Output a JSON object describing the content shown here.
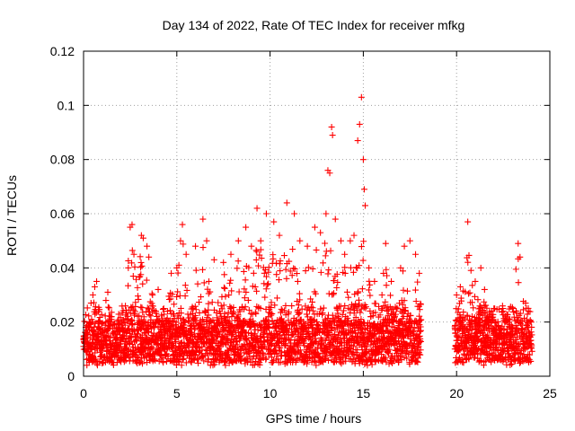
{
  "chart_data": {
    "type": "scatter",
    "title": "Day 134 of 2022, Rate Of TEC Index for receiver mfkg",
    "xlabel": "GPS time / hours",
    "ylabel": "ROTI / TECUs",
    "xlim": [
      0,
      25
    ],
    "ylim": [
      0,
      0.12
    ],
    "xticks": [
      0,
      5,
      10,
      15,
      20,
      25
    ],
    "xtick_labels": [
      "0",
      "5",
      "10",
      "15",
      "20",
      "25"
    ],
    "yticks": [
      0,
      0.02,
      0.04,
      0.06,
      0.08,
      0.1,
      0.12
    ],
    "ytick_labels": [
      "0",
      "0.02",
      "0.04",
      "0.06",
      "0.08",
      "0.1",
      "0.12"
    ],
    "grid": true,
    "marker": "+",
    "color": "#ff0000",
    "data_gap": [
      18.1,
      19.9
    ],
    "series": [
      {
        "points": [
          [
            0.0,
            0.011
          ],
          [
            0.1,
            0.015
          ],
          [
            0.2,
            0.009
          ],
          [
            0.3,
            0.02
          ],
          [
            0.4,
            0.027
          ],
          [
            0.5,
            0.03
          ],
          [
            0.6,
            0.033
          ],
          [
            0.7,
            0.035
          ],
          [
            0.8,
            0.02
          ],
          [
            1.0,
            0.016
          ],
          [
            1.2,
            0.028
          ],
          [
            1.3,
            0.031
          ],
          [
            1.5,
            0.022
          ],
          [
            1.8,
            0.014
          ],
          [
            2.0,
            0.012
          ],
          [
            2.4,
            0.04
          ],
          [
            2.5,
            0.055
          ],
          [
            2.6,
            0.056
          ],
          [
            2.7,
            0.045
          ],
          [
            3.1,
            0.052
          ],
          [
            3.2,
            0.051
          ],
          [
            3.4,
            0.048
          ],
          [
            3.5,
            0.044
          ],
          [
            3.7,
            0.03
          ],
          [
            4.0,
            0.032
          ],
          [
            4.3,
            0.025
          ],
          [
            4.7,
            0.038
          ],
          [
            5.0,
            0.04
          ],
          [
            5.2,
            0.05
          ],
          [
            5.3,
            0.056
          ],
          [
            5.5,
            0.045
          ],
          [
            6.0,
            0.048
          ],
          [
            6.4,
            0.058
          ],
          [
            6.6,
            0.05
          ],
          [
            7.0,
            0.043
          ],
          [
            7.5,
            0.042
          ],
          [
            7.9,
            0.045
          ],
          [
            8.3,
            0.05
          ],
          [
            8.7,
            0.055
          ],
          [
            9.0,
            0.048
          ],
          [
            9.3,
            0.062
          ],
          [
            9.5,
            0.05
          ],
          [
            9.8,
            0.06
          ],
          [
            10.2,
            0.057
          ],
          [
            10.5,
            0.052
          ],
          [
            10.9,
            0.064
          ],
          [
            11.3,
            0.06
          ],
          [
            11.6,
            0.05
          ],
          [
            12.0,
            0.048
          ],
          [
            12.4,
            0.055
          ],
          [
            12.7,
            0.053
          ],
          [
            13.0,
            0.06
          ],
          [
            13.1,
            0.076
          ],
          [
            13.2,
            0.075
          ],
          [
            13.3,
            0.092
          ],
          [
            13.35,
            0.089
          ],
          [
            13.5,
            0.058
          ],
          [
            13.8,
            0.05
          ],
          [
            14.0,
            0.045
          ],
          [
            14.3,
            0.05
          ],
          [
            14.5,
            0.052
          ],
          [
            14.7,
            0.087
          ],
          [
            14.8,
            0.093
          ],
          [
            14.9,
            0.103
          ],
          [
            15.0,
            0.08
          ],
          [
            15.05,
            0.069
          ],
          [
            15.1,
            0.063
          ],
          [
            15.3,
            0.04
          ],
          [
            15.6,
            0.035
          ],
          [
            16.0,
            0.03
          ],
          [
            16.2,
            0.049
          ],
          [
            16.5,
            0.035
          ],
          [
            17.0,
            0.04
          ],
          [
            17.2,
            0.048
          ],
          [
            17.5,
            0.05
          ],
          [
            17.8,
            0.045
          ],
          [
            18.0,
            0.038
          ],
          [
            20.0,
            0.03
          ],
          [
            20.2,
            0.033
          ],
          [
            20.6,
            0.057
          ],
          [
            21.0,
            0.035
          ],
          [
            21.3,
            0.04
          ],
          [
            21.5,
            0.032
          ],
          [
            22.0,
            0.025
          ],
          [
            22.5,
            0.024
          ],
          [
            23.0,
            0.025
          ],
          [
            23.3,
            0.049
          ],
          [
            23.4,
            0.044
          ],
          [
            23.7,
            0.027
          ],
          [
            24.0,
            0.02
          ]
        ]
      }
    ]
  }
}
